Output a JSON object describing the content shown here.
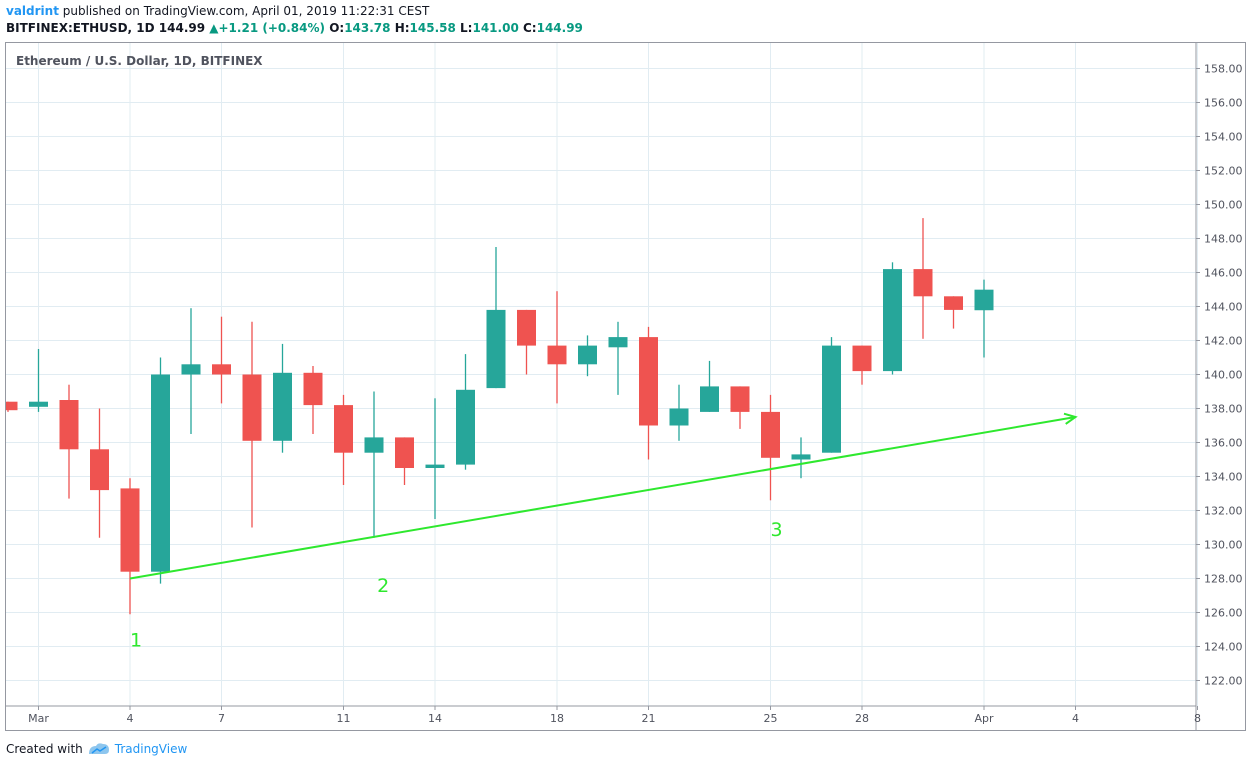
{
  "header": {
    "author": "valdrint",
    "published_text": " published on TradingView.com, April 01, 2019 11:22:31 CEST",
    "symbol": "BITFINEX:ETHUSD, 1D",
    "last": "144.99",
    "change": "+1.21 (+0.84%)",
    "o_label": "O:",
    "o_value": "143.78",
    "h_label": "H:",
    "h_value": "145.58",
    "l_label": "L:",
    "l_value": "141.00",
    "c_label": "C:",
    "c_value": "144.99"
  },
  "footer": {
    "created_with": "Created with",
    "brand": "TradingView"
  },
  "colors": {
    "up": "#26a69a",
    "down": "#ef5350",
    "trend": "#2ee82e",
    "label": "#2ee82e",
    "grid": "#e1ecf2"
  },
  "chart_data": {
    "type": "candlestick",
    "title": "Ethereum / U.S. Dollar, 1D, BITFINEX",
    "ylim": [
      120.5,
      159.5
    ],
    "y_ticks": [
      122,
      124,
      126,
      128,
      130,
      132,
      134,
      136,
      138,
      140,
      142,
      144,
      146,
      148,
      150,
      152,
      154,
      156,
      158
    ],
    "y_tick_labels": [
      "122.00",
      "124.00",
      "126.00",
      "128.00",
      "130.00",
      "132.00",
      "134.00",
      "136.00",
      "138.00",
      "140.00",
      "142.00",
      "144.00",
      "146.00",
      "148.00",
      "150.00",
      "152.00",
      "154.00",
      "156.00",
      "158.00"
    ],
    "x_ticks": [
      {
        "day": 1,
        "label": "Mar"
      },
      {
        "day": 4,
        "label": "4"
      },
      {
        "day": 7,
        "label": "7"
      },
      {
        "day": 11,
        "label": "11"
      },
      {
        "day": 14,
        "label": "14"
      },
      {
        "day": 18,
        "label": "18"
      },
      {
        "day": 21,
        "label": "21"
      },
      {
        "day": 25,
        "label": "25"
      },
      {
        "day": 28,
        "label": "28"
      },
      {
        "day": 32,
        "label": "Apr"
      },
      {
        "day": 35,
        "label": "4"
      },
      {
        "day": 39,
        "label": "8"
      }
    ],
    "candles": [
      {
        "day": 0,
        "o": 138.4,
        "h": 138.4,
        "l": 137.8,
        "c": 137.9
      },
      {
        "day": 1,
        "o": 138.1,
        "h": 141.5,
        "l": 137.8,
        "c": 138.4
      },
      {
        "day": 2,
        "o": 138.5,
        "h": 139.4,
        "l": 132.7,
        "c": 135.6
      },
      {
        "day": 3,
        "o": 135.6,
        "h": 138.0,
        "l": 130.4,
        "c": 133.2
      },
      {
        "day": 4,
        "o": 133.3,
        "h": 133.9,
        "l": 125.9,
        "c": 128.4
      },
      {
        "day": 5,
        "o": 128.4,
        "h": 141.0,
        "l": 127.7,
        "c": 140.0
      },
      {
        "day": 6,
        "o": 140.0,
        "h": 143.9,
        "l": 136.5,
        "c": 140.6
      },
      {
        "day": 7,
        "o": 140.6,
        "h": 143.4,
        "l": 138.3,
        "c": 140.0
      },
      {
        "day": 8,
        "o": 140.0,
        "h": 143.1,
        "l": 131.0,
        "c": 136.1
      },
      {
        "day": 9,
        "o": 136.1,
        "h": 141.8,
        "l": 135.4,
        "c": 140.1
      },
      {
        "day": 10,
        "o": 140.1,
        "h": 140.5,
        "l": 136.5,
        "c": 138.2
      },
      {
        "day": 11,
        "o": 138.2,
        "h": 138.8,
        "l": 133.5,
        "c": 135.4
      },
      {
        "day": 12,
        "o": 135.4,
        "h": 139.0,
        "l": 130.4,
        "c": 136.3
      },
      {
        "day": 13,
        "o": 136.3,
        "h": 136.3,
        "l": 133.5,
        "c": 134.5
      },
      {
        "day": 14,
        "o": 134.5,
        "h": 138.6,
        "l": 131.5,
        "c": 134.7
      },
      {
        "day": 15,
        "o": 134.7,
        "h": 141.2,
        "l": 134.4,
        "c": 139.1
      },
      {
        "day": 16,
        "o": 139.2,
        "h": 147.5,
        "l": 139.2,
        "c": 143.8
      },
      {
        "day": 17,
        "o": 143.8,
        "h": 143.8,
        "l": 140.0,
        "c": 141.7
      },
      {
        "day": 18,
        "o": 141.7,
        "h": 144.9,
        "l": 138.3,
        "c": 140.6
      },
      {
        "day": 19,
        "o": 140.6,
        "h": 142.3,
        "l": 139.9,
        "c": 141.7
      },
      {
        "day": 20,
        "o": 141.6,
        "h": 143.1,
        "l": 138.8,
        "c": 142.2
      },
      {
        "day": 21,
        "o": 142.2,
        "h": 142.8,
        "l": 135.0,
        "c": 137.0
      },
      {
        "day": 22,
        "o": 137.0,
        "h": 139.4,
        "l": 136.1,
        "c": 138.0
      },
      {
        "day": 23,
        "o": 137.8,
        "h": 140.8,
        "l": 137.8,
        "c": 139.3
      },
      {
        "day": 24,
        "o": 139.3,
        "h": 139.3,
        "l": 136.8,
        "c": 137.8
      },
      {
        "day": 25,
        "o": 137.8,
        "h": 138.8,
        "l": 132.6,
        "c": 135.1
      },
      {
        "day": 26,
        "o": 135.0,
        "h": 136.3,
        "l": 133.9,
        "c": 135.3
      },
      {
        "day": 27,
        "o": 135.4,
        "h": 142.2,
        "l": 135.4,
        "c": 141.7
      },
      {
        "day": 28,
        "o": 141.7,
        "h": 141.7,
        "l": 139.4,
        "c": 140.2
      },
      {
        "day": 29,
        "o": 140.2,
        "h": 146.6,
        "l": 140.0,
        "c": 146.2
      },
      {
        "day": 30,
        "o": 146.2,
        "h": 149.2,
        "l": 142.1,
        "c": 144.6
      },
      {
        "day": 31,
        "o": 144.6,
        "h": 144.6,
        "l": 142.7,
        "c": 143.8
      },
      {
        "day": 32,
        "o": 143.78,
        "h": 145.58,
        "l": 141.0,
        "c": 144.99
      }
    ],
    "trend_line": {
      "start": {
        "day": 4,
        "price": 128.0
      },
      "end": {
        "day": 35,
        "price": 137.5
      }
    },
    "annotations": [
      {
        "text": "1",
        "day": 4.2,
        "price": 124.0
      },
      {
        "text": "2",
        "day": 12.3,
        "price": 127.2
      },
      {
        "text": "3",
        "day": 25.2,
        "price": 130.5
      }
    ]
  }
}
